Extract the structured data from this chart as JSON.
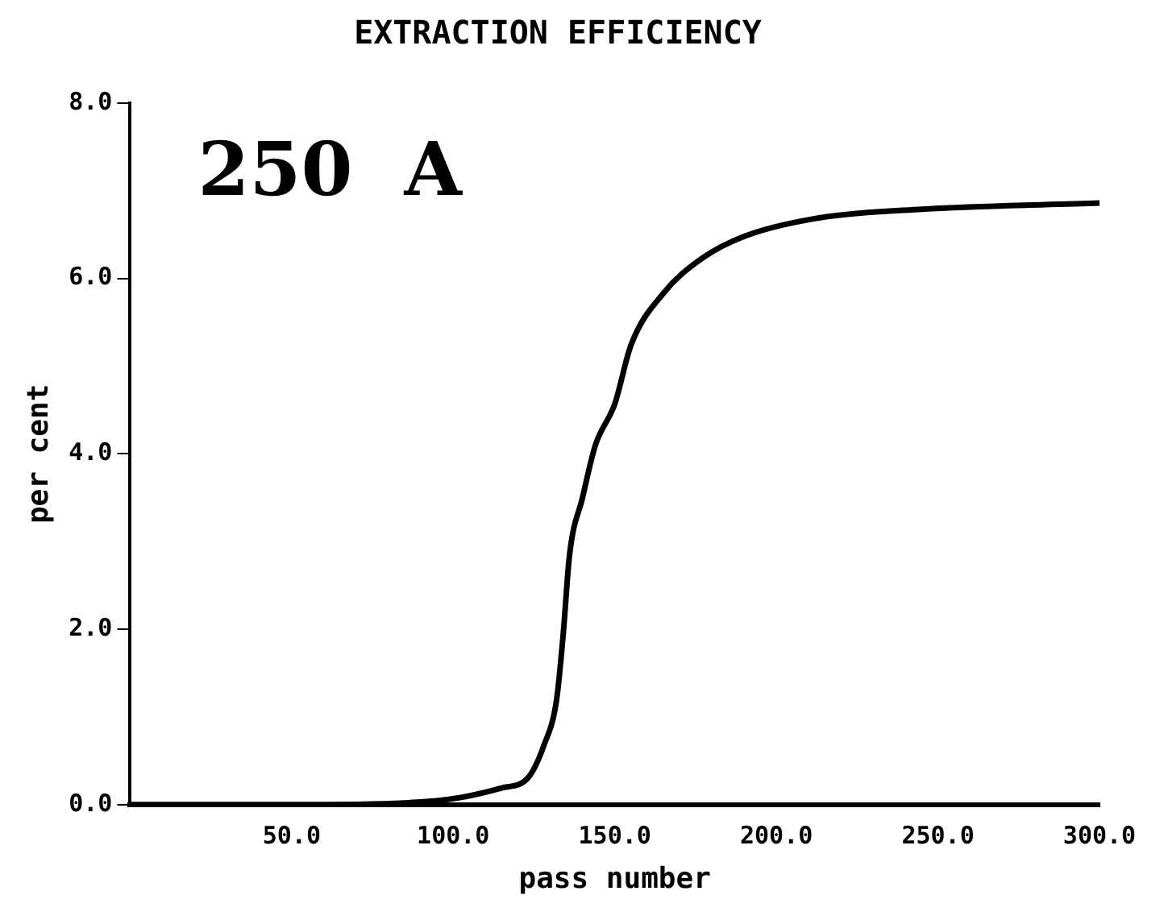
{
  "chart_data": {
    "type": "line",
    "title": "EXTRACTION EFFICIENCY",
    "xlabel": "pass number",
    "ylabel": "per cent",
    "annotations": [
      "250  A"
    ],
    "x": [
      0,
      50,
      85,
      102,
      115,
      123,
      128,
      132,
      134,
      136,
      140,
      144,
      150,
      155,
      165,
      177,
      190,
      213,
      245,
      300
    ],
    "series": [
      {
        "color": "#000000",
        "values": [
          0,
          0,
          0.02,
          0.08,
          0.19,
          0.3,
          0.67,
          1.2,
          1.93,
          2.85,
          3.5,
          4.1,
          4.57,
          5.24,
          5.83,
          6.23,
          6.48,
          6.69,
          6.79,
          6.86
        ]
      }
    ],
    "xlim": [
      0,
      300
    ],
    "xticks": [
      {
        "value": 50,
        "label": "50.0"
      },
      {
        "value": 100,
        "label": "100.0"
      },
      {
        "value": 150,
        "label": "150.0"
      },
      {
        "value": 200,
        "label": "200.0"
      },
      {
        "value": 250,
        "label": "250.0"
      },
      {
        "value": 300,
        "label": "300.0"
      }
    ],
    "ylim": [
      0,
      8
    ],
    "yticks": [
      {
        "value": 0,
        "label": "0.0"
      },
      {
        "value": 2,
        "label": "2.0"
      },
      {
        "value": 4,
        "label": "4.0"
      },
      {
        "value": 6,
        "label": "6.0"
      },
      {
        "value": 8,
        "label": "8.0"
      }
    ],
    "grid": false,
    "legend": false,
    "marker": "none",
    "line_style": "solid"
  }
}
